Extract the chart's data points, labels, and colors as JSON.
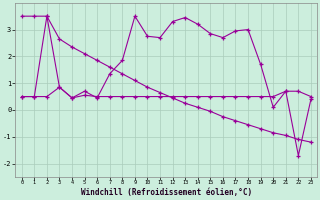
{
  "xlabel": "Windchill (Refroidissement éolien,°C)",
  "x": [
    0,
    1,
    2,
    3,
    4,
    5,
    6,
    7,
    8,
    9,
    10,
    11,
    12,
    13,
    14,
    15,
    16,
    17,
    18,
    19,
    20,
    21,
    22,
    23
  ],
  "line_flat": [
    0.5,
    0.5,
    0.5,
    0.85,
    0.45,
    0.55,
    0.5,
    0.5,
    0.5,
    0.5,
    0.5,
    0.5,
    0.5,
    0.5,
    0.5,
    0.5,
    0.5,
    0.5,
    0.5,
    0.5,
    0.5,
    0.7,
    0.7,
    0.5
  ],
  "line_wiggly": [
    0.5,
    0.5,
    3.5,
    0.85,
    0.45,
    0.7,
    0.45,
    1.35,
    1.85,
    3.5,
    2.75,
    2.7,
    3.3,
    3.45,
    3.2,
    2.85,
    2.7,
    2.95,
    3.0,
    1.7,
    0.1,
    0.7,
    -1.7,
    0.4
  ],
  "line_trend": [
    3.5,
    3.5,
    3.5,
    2.65,
    2.35,
    2.1,
    1.85,
    1.6,
    1.35,
    1.1,
    0.85,
    0.65,
    0.45,
    0.25,
    0.1,
    -0.05,
    -0.25,
    -0.4,
    -0.55,
    -0.7,
    -0.85,
    -0.95,
    -1.1,
    -1.2
  ],
  "line_color": "#990099",
  "bg_color": "#cceedd",
  "grid_color": "#aaccbb",
  "ylim": [
    -2.5,
    4.0
  ],
  "yticks": [
    -2,
    -1,
    0,
    1,
    2,
    3
  ],
  "xticks": [
    0,
    1,
    2,
    3,
    4,
    5,
    6,
    7,
    8,
    9,
    10,
    11,
    12,
    13,
    14,
    15,
    16,
    17,
    18,
    19,
    20,
    21,
    22,
    23
  ]
}
